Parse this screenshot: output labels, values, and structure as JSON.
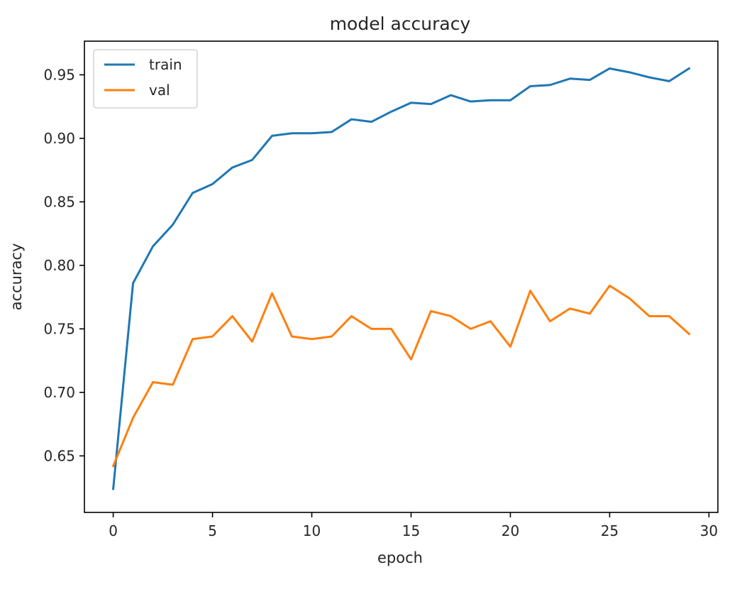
{
  "chart_data": {
    "type": "line",
    "title": "model accuracy",
    "xlabel": "epoch",
    "ylabel": "accuracy",
    "x": [
      0,
      1,
      2,
      3,
      4,
      5,
      6,
      7,
      8,
      9,
      10,
      11,
      12,
      13,
      14,
      15,
      16,
      17,
      18,
      19,
      20,
      21,
      22,
      23,
      24,
      25,
      26,
      27,
      28,
      29
    ],
    "xlim": [
      -1.45,
      30.45
    ],
    "ylim": [
      0.6055,
      0.9765
    ],
    "xticks": [
      0,
      5,
      10,
      15,
      20,
      25,
      30
    ],
    "yticks": [
      0.65,
      0.7,
      0.75,
      0.8,
      0.85,
      0.9,
      0.95
    ],
    "ytick_labels": [
      "0.65",
      "0.70",
      "0.75",
      "0.80",
      "0.85",
      "0.90",
      "0.95"
    ],
    "grid": false,
    "legend_position": "upper-left",
    "series": [
      {
        "name": "train",
        "color": "#1f77b4",
        "values": [
          0.624,
          0.786,
          0.815,
          0.832,
          0.857,
          0.864,
          0.877,
          0.883,
          0.902,
          0.904,
          0.904,
          0.905,
          0.915,
          0.913,
          0.921,
          0.928,
          0.927,
          0.934,
          0.929,
          0.93,
          0.93,
          0.941,
          0.942,
          0.947,
          0.946,
          0.955,
          0.952,
          0.948,
          0.945,
          0.955
        ]
      },
      {
        "name": "val",
        "color": "#ff7f0e",
        "values": [
          0.642,
          0.68,
          0.708,
          0.706,
          0.742,
          0.744,
          0.76,
          0.74,
          0.778,
          0.744,
          0.742,
          0.744,
          0.76,
          0.75,
          0.75,
          0.726,
          0.764,
          0.76,
          0.75,
          0.756,
          0.736,
          0.78,
          0.756,
          0.766,
          0.762,
          0.784,
          0.774,
          0.76,
          0.76,
          0.746
        ]
      }
    ]
  }
}
